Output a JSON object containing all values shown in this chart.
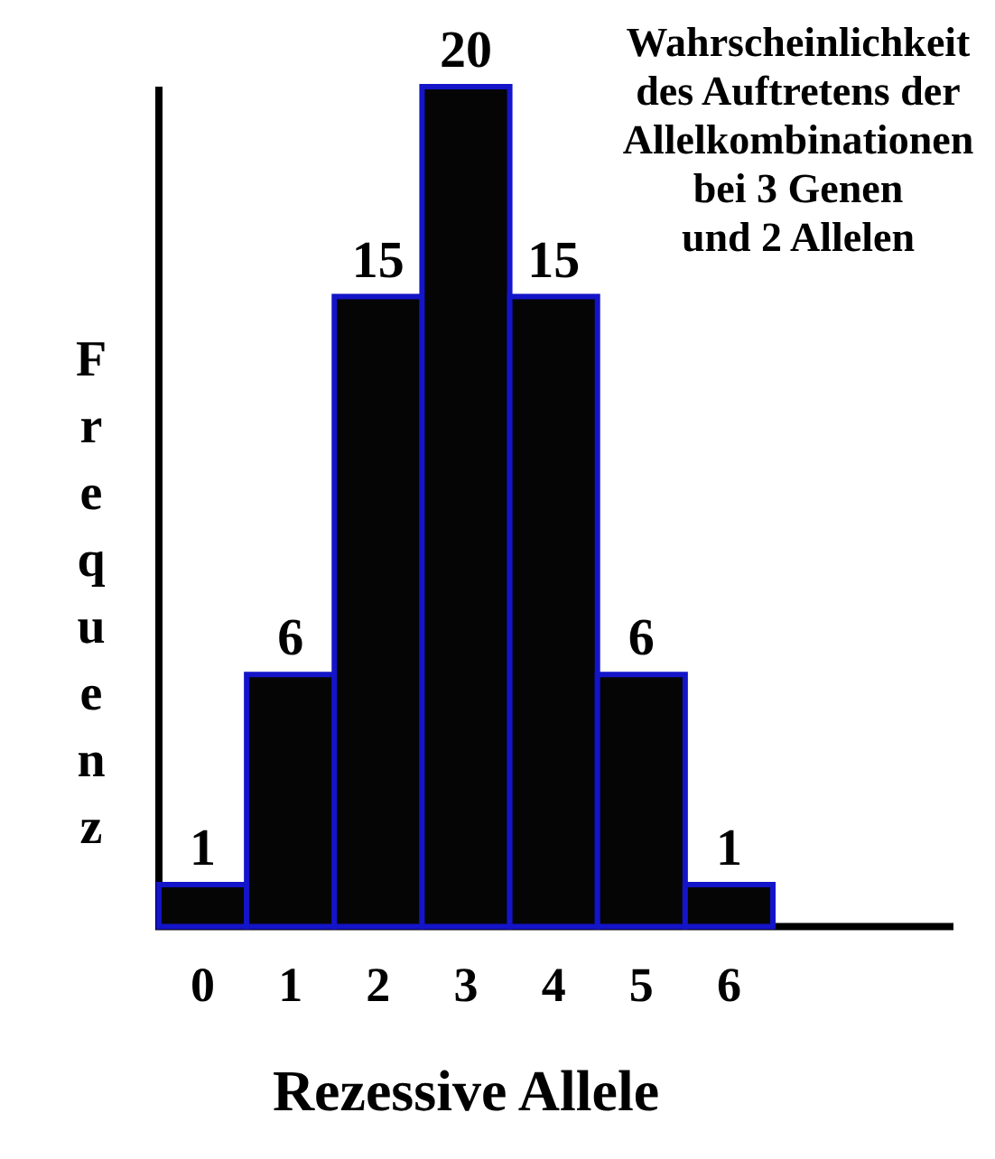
{
  "chart_data": {
    "type": "bar",
    "title": "Wahrscheinlichkeit\ndes Auftretens der\nAllelkombinationen\nbei 3 Genen\nund 2 Allelen",
    "xlabel": "Rezessive Allele",
    "ylabel": "Frequenz",
    "categories": [
      "0",
      "1",
      "2",
      "3",
      "4",
      "5",
      "6"
    ],
    "values": [
      1,
      6,
      15,
      20,
      15,
      6,
      1
    ],
    "color": "#050505",
    "ylim": [
      0,
      20
    ],
    "tick_labels": "x",
    "data_labels": true
  }
}
